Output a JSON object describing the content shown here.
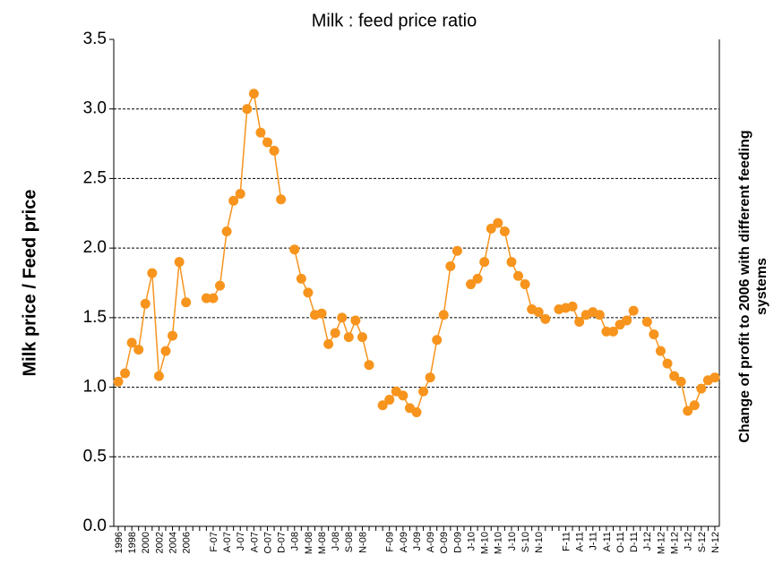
{
  "chart_data": {
    "type": "line",
    "title": "Milk : feed price ratio",
    "y_label": "Milk price / Feed price",
    "y2_label": [
      "Change of profit  to 2006 with different feeding",
      "systems"
    ],
    "categories": [
      "1996",
      null,
      "1998",
      null,
      "2000",
      null,
      "2002",
      null,
      "2004",
      null,
      "2006",
      null,
      null,
      null,
      "F-07",
      null,
      "A-07",
      null,
      "J-07",
      null,
      "A-07",
      null,
      "O-07",
      null,
      "D-07",
      null,
      "J-08",
      null,
      "M-08",
      null,
      "M-08",
      null,
      "J-08",
      null,
      "S-08",
      null,
      "N-08",
      null,
      null,
      null,
      "F-09",
      null,
      "A-09",
      null,
      "J-09",
      null,
      "A-09",
      null,
      "O-09",
      null,
      "D-09",
      null,
      "J-10",
      null,
      "M-10",
      null,
      "M-10",
      null,
      "J-10",
      null,
      "S-10",
      null,
      "N-10",
      null,
      null,
      null,
      "F-11",
      null,
      "A-11",
      null,
      "J-11",
      null,
      "A-11",
      null,
      "O-11",
      null,
      "D-11",
      null,
      "J-12",
      null,
      "M-12",
      null,
      "M-12",
      null,
      "J-12",
      null,
      "S-12",
      null,
      "N-12"
    ],
    "series": [
      {
        "name": "Milk : feed price ratio",
        "color": "#f7941d",
        "values": [
          1.04,
          1.1,
          1.32,
          1.27,
          1.6,
          1.82,
          1.08,
          1.26,
          1.37,
          1.9,
          1.61,
          null,
          null,
          1.64,
          1.64,
          1.73,
          2.12,
          2.34,
          2.39,
          3.0,
          3.11,
          2.83,
          2.76,
          2.7,
          2.35,
          null,
          1.99,
          1.78,
          1.68,
          1.52,
          1.53,
          1.31,
          1.39,
          1.5,
          1.36,
          1.48,
          1.36,
          1.16,
          null,
          0.87,
          0.91,
          0.97,
          0.94,
          0.85,
          0.82,
          0.97,
          1.07,
          1.34,
          1.52,
          1.87,
          1.98,
          null,
          1.74,
          1.78,
          1.9,
          2.14,
          2.18,
          2.12,
          1.9,
          1.8,
          1.74,
          1.56,
          1.54,
          1.49,
          null,
          1.56,
          1.57,
          1.58,
          1.47,
          1.52,
          1.54,
          1.52,
          1.4,
          1.4,
          1.45,
          1.48,
          1.55,
          null,
          1.47,
          1.38,
          1.26,
          1.17,
          1.08,
          1.04,
          0.83,
          0.87,
          0.99,
          1.05,
          1.07
        ]
      }
    ],
    "ylim": [
      0,
      3.5
    ],
    "yticks": [
      {
        "value": 0,
        "label": "0.0"
      },
      0.5,
      {
        "value": 1,
        "label": "1.0"
      },
      1.5,
      {
        "value": 2,
        "label": "2.0"
      },
      2.5,
      {
        "value": 3,
        "label": "3.0"
      },
      3.5
    ],
    "grid": true
  }
}
